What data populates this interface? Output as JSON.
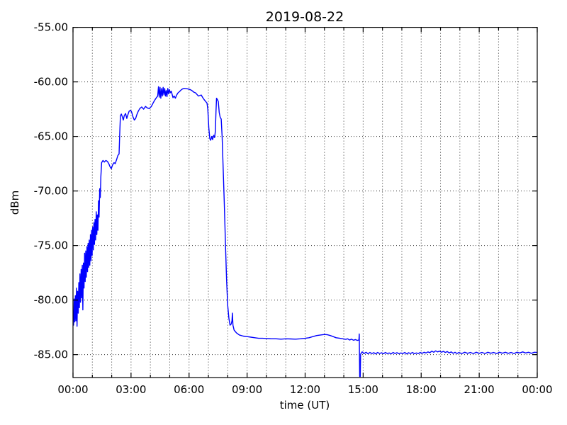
{
  "chart_data": {
    "type": "line",
    "title": "2019-08-22",
    "xlabel": "time (UT)",
    "ylabel": "dBm",
    "xlim": [
      0,
      24
    ],
    "ylim": [
      -87.1,
      -55
    ],
    "grid": true,
    "frame_color": "#000000",
    "grid_color": "#333333",
    "x_axis": {
      "major_ticks": [
        {
          "hour": 0,
          "label": "00:00"
        },
        {
          "hour": 3,
          "label": "03:00"
        },
        {
          "hour": 6,
          "label": "06:00"
        },
        {
          "hour": 9,
          "label": "09:00"
        },
        {
          "hour": 12,
          "label": "12:00"
        },
        {
          "hour": 15,
          "label": "15:00"
        },
        {
          "hour": 18,
          "label": "18:00"
        },
        {
          "hour": 21,
          "label": "21:00"
        },
        {
          "hour": 24,
          "label": "00:00"
        }
      ],
      "minor_tick_hours": [
        1,
        2,
        4,
        5,
        7,
        8,
        10,
        11,
        13,
        14,
        16,
        17,
        19,
        20,
        22,
        23
      ],
      "grid_hours": [
        1,
        2,
        3,
        4,
        5,
        6,
        7,
        8,
        9,
        10,
        11,
        12,
        13,
        14,
        15,
        16,
        17,
        18,
        19,
        20,
        21,
        22,
        23
      ]
    },
    "y_axis": {
      "major_ticks": [
        {
          "value": -55,
          "label": "-55.00"
        },
        {
          "value": -60,
          "label": "-60.00"
        },
        {
          "value": -65,
          "label": "-65.00"
        },
        {
          "value": -70,
          "label": "-70.00"
        },
        {
          "value": -75,
          "label": "-75.00"
        },
        {
          "value": -80,
          "label": "-80.00"
        },
        {
          "value": -85,
          "label": "-85.00"
        }
      ],
      "grid_values": [
        -60,
        -65,
        -70,
        -75,
        -80,
        -85
      ]
    },
    "series": [
      {
        "color": "#0000ff",
        "points": [
          [
            0.0,
            -81.5
          ],
          [
            0.03,
            -82.3
          ],
          [
            0.06,
            -79.9
          ],
          [
            0.09,
            -82.0
          ],
          [
            0.12,
            -79.6
          ],
          [
            0.15,
            -81.9
          ],
          [
            0.18,
            -78.9
          ],
          [
            0.21,
            -82.4
          ],
          [
            0.24,
            -79.2
          ],
          [
            0.27,
            -81.2
          ],
          [
            0.3,
            -78.4
          ],
          [
            0.33,
            -80.7
          ],
          [
            0.36,
            -77.6
          ],
          [
            0.39,
            -80.2
          ],
          [
            0.42,
            -77.2
          ],
          [
            0.45,
            -79.8
          ],
          [
            0.48,
            -76.8
          ],
          [
            0.51,
            -80.9
          ],
          [
            0.54,
            -76.6
          ],
          [
            0.57,
            -78.9
          ],
          [
            0.6,
            -75.7
          ],
          [
            0.63,
            -78.3
          ],
          [
            0.66,
            -75.5
          ],
          [
            0.69,
            -77.9
          ],
          [
            0.72,
            -75.1
          ],
          [
            0.75,
            -77.4
          ],
          [
            0.78,
            -74.8
          ],
          [
            0.81,
            -77.0
          ],
          [
            0.84,
            -74.5
          ],
          [
            0.87,
            -76.8
          ],
          [
            0.9,
            -74.0
          ],
          [
            0.93,
            -76.4
          ],
          [
            0.96,
            -73.6
          ],
          [
            0.99,
            -75.9
          ],
          [
            1.02,
            -73.3
          ],
          [
            1.05,
            -75.4
          ],
          [
            1.08,
            -72.9
          ],
          [
            1.11,
            -74.9
          ],
          [
            1.14,
            -72.6
          ],
          [
            1.17,
            -74.5
          ],
          [
            1.2,
            -71.9
          ],
          [
            1.23,
            -74.0
          ],
          [
            1.26,
            -72.2
          ],
          [
            1.29,
            -73.6
          ],
          [
            1.32,
            -70.9
          ],
          [
            1.35,
            -72.4
          ],
          [
            1.38,
            -69.8
          ],
          [
            1.41,
            -70.6
          ],
          [
            1.44,
            -68.7
          ],
          [
            1.48,
            -67.4
          ],
          [
            1.55,
            -67.2
          ],
          [
            1.62,
            -67.35
          ],
          [
            1.7,
            -67.2
          ],
          [
            1.78,
            -67.3
          ],
          [
            1.85,
            -67.5
          ],
          [
            1.92,
            -67.8
          ],
          [
            1.98,
            -67.95
          ],
          [
            2.05,
            -67.6
          ],
          [
            2.12,
            -67.4
          ],
          [
            2.18,
            -67.5
          ],
          [
            2.25,
            -67.15
          ],
          [
            2.32,
            -66.75
          ],
          [
            2.38,
            -66.6
          ],
          [
            2.42,
            -64.6
          ],
          [
            2.45,
            -63.1
          ],
          [
            2.5,
            -62.95
          ],
          [
            2.55,
            -63.2
          ],
          [
            2.6,
            -63.5
          ],
          [
            2.65,
            -63.1
          ],
          [
            2.72,
            -62.9
          ],
          [
            2.78,
            -63.35
          ],
          [
            2.83,
            -63.05
          ],
          [
            2.9,
            -62.7
          ],
          [
            2.97,
            -62.6
          ],
          [
            3.03,
            -62.75
          ],
          [
            3.1,
            -63.2
          ],
          [
            3.17,
            -63.5
          ],
          [
            3.24,
            -63.35
          ],
          [
            3.3,
            -63.0
          ],
          [
            3.37,
            -62.7
          ],
          [
            3.45,
            -62.45
          ],
          [
            3.55,
            -62.3
          ],
          [
            3.65,
            -62.5
          ],
          [
            3.75,
            -62.25
          ],
          [
            3.85,
            -62.4
          ],
          [
            3.95,
            -62.45
          ],
          [
            4.05,
            -62.25
          ],
          [
            4.15,
            -61.9
          ],
          [
            4.25,
            -61.6
          ],
          [
            4.33,
            -61.4
          ],
          [
            4.38,
            -61.3
          ],
          [
            4.42,
            -60.45
          ],
          [
            4.46,
            -61.4
          ],
          [
            4.5,
            -60.5
          ],
          [
            4.54,
            -61.5
          ],
          [
            4.58,
            -60.6
          ],
          [
            4.62,
            -61.3
          ],
          [
            4.66,
            -60.5
          ],
          [
            4.7,
            -61.2
          ],
          [
            4.74,
            -60.6
          ],
          [
            4.78,
            -61.3
          ],
          [
            4.82,
            -60.8
          ],
          [
            4.86,
            -61.35
          ],
          [
            4.9,
            -60.6
          ],
          [
            4.94,
            -61.1
          ],
          [
            4.98,
            -60.7
          ],
          [
            5.03,
            -61.0
          ],
          [
            5.08,
            -60.85
          ],
          [
            5.12,
            -61.1
          ],
          [
            5.17,
            -61.45
          ],
          [
            5.23,
            -61.3
          ],
          [
            5.29,
            -61.5
          ],
          [
            5.36,
            -61.2
          ],
          [
            5.43,
            -61.0
          ],
          [
            5.5,
            -60.9
          ],
          [
            5.58,
            -60.75
          ],
          [
            5.66,
            -60.65
          ],
          [
            5.75,
            -60.6
          ],
          [
            5.85,
            -60.62
          ],
          [
            5.95,
            -60.65
          ],
          [
            6.05,
            -60.7
          ],
          [
            6.15,
            -60.8
          ],
          [
            6.25,
            -60.95
          ],
          [
            6.33,
            -61.0
          ],
          [
            6.41,
            -61.15
          ],
          [
            6.48,
            -61.3
          ],
          [
            6.55,
            -61.25
          ],
          [
            6.63,
            -61.2
          ],
          [
            6.71,
            -61.45
          ],
          [
            6.79,
            -61.65
          ],
          [
            6.86,
            -61.8
          ],
          [
            6.93,
            -61.95
          ],
          [
            6.97,
            -62.5
          ],
          [
            7.02,
            -64.2
          ],
          [
            7.07,
            -65.2
          ],
          [
            7.12,
            -65.35
          ],
          [
            7.17,
            -65.0
          ],
          [
            7.22,
            -65.3
          ],
          [
            7.27,
            -64.9
          ],
          [
            7.32,
            -65.1
          ],
          [
            7.36,
            -64.5
          ],
          [
            7.39,
            -62.8
          ],
          [
            7.42,
            -61.5
          ],
          [
            7.46,
            -61.6
          ],
          [
            7.51,
            -61.8
          ],
          [
            7.56,
            -62.8
          ],
          [
            7.61,
            -63.25
          ],
          [
            7.66,
            -63.4
          ],
          [
            7.71,
            -65.0
          ],
          [
            7.76,
            -67.8
          ],
          [
            7.82,
            -71.0
          ],
          [
            7.88,
            -74.8
          ],
          [
            7.94,
            -78.2
          ],
          [
            8.0,
            -80.5
          ],
          [
            8.06,
            -81.7
          ],
          [
            8.12,
            -82.3
          ],
          [
            8.18,
            -82.2
          ],
          [
            8.22,
            -81.9
          ],
          [
            8.24,
            -81.2
          ],
          [
            8.27,
            -82.3
          ],
          [
            8.33,
            -82.75
          ],
          [
            8.45,
            -83.0
          ],
          [
            8.6,
            -83.2
          ],
          [
            8.8,
            -83.3
          ],
          [
            9.0,
            -83.35
          ],
          [
            9.2,
            -83.4
          ],
          [
            9.4,
            -83.45
          ],
          [
            9.6,
            -83.5
          ],
          [
            9.8,
            -83.5
          ],
          [
            10.0,
            -83.52
          ],
          [
            10.25,
            -83.55
          ],
          [
            10.5,
            -83.55
          ],
          [
            10.75,
            -83.58
          ],
          [
            11.0,
            -83.55
          ],
          [
            11.25,
            -83.56
          ],
          [
            11.5,
            -83.58
          ],
          [
            11.75,
            -83.55
          ],
          [
            12.0,
            -83.5
          ],
          [
            12.2,
            -83.45
          ],
          [
            12.4,
            -83.35
          ],
          [
            12.6,
            -83.25
          ],
          [
            12.8,
            -83.2
          ],
          [
            13.0,
            -83.15
          ],
          [
            13.15,
            -83.18
          ],
          [
            13.3,
            -83.25
          ],
          [
            13.45,
            -83.35
          ],
          [
            13.6,
            -83.45
          ],
          [
            13.8,
            -83.5
          ],
          [
            13.95,
            -83.55
          ],
          [
            14.1,
            -83.6
          ],
          [
            14.2,
            -83.55
          ],
          [
            14.3,
            -83.66
          ],
          [
            14.4,
            -83.58
          ],
          [
            14.5,
            -83.68
          ],
          [
            14.6,
            -83.62
          ],
          [
            14.7,
            -83.7
          ],
          [
            14.78,
            -83.66
          ],
          [
            14.8,
            -83.1
          ],
          [
            14.82,
            -87.0
          ],
          [
            14.85,
            -87.0
          ],
          [
            14.87,
            -84.95
          ],
          [
            14.95,
            -84.75
          ],
          [
            15.05,
            -84.9
          ],
          [
            15.15,
            -84.78
          ],
          [
            15.25,
            -84.92
          ],
          [
            15.35,
            -84.8
          ],
          [
            15.45,
            -84.9
          ],
          [
            15.55,
            -84.82
          ],
          [
            15.65,
            -84.93
          ],
          [
            15.75,
            -84.8
          ],
          [
            15.85,
            -84.9
          ],
          [
            15.95,
            -84.83
          ],
          [
            16.05,
            -84.92
          ],
          [
            16.15,
            -84.8
          ],
          [
            16.25,
            -84.9
          ],
          [
            16.35,
            -84.85
          ],
          [
            16.45,
            -84.93
          ],
          [
            16.55,
            -84.8
          ],
          [
            16.65,
            -84.9
          ],
          [
            16.75,
            -84.82
          ],
          [
            16.85,
            -84.92
          ],
          [
            16.95,
            -84.85
          ],
          [
            17.05,
            -84.9
          ],
          [
            17.15,
            -84.8
          ],
          [
            17.25,
            -84.93
          ],
          [
            17.35,
            -84.83
          ],
          [
            17.45,
            -84.9
          ],
          [
            17.55,
            -84.8
          ],
          [
            17.65,
            -84.92
          ],
          [
            17.75,
            -84.85
          ],
          [
            17.85,
            -84.9
          ],
          [
            17.95,
            -84.8
          ],
          [
            18.05,
            -84.88
          ],
          [
            18.15,
            -84.78
          ],
          [
            18.25,
            -84.85
          ],
          [
            18.35,
            -84.75
          ],
          [
            18.45,
            -84.82
          ],
          [
            18.55,
            -84.68
          ],
          [
            18.65,
            -84.78
          ],
          [
            18.75,
            -84.65
          ],
          [
            18.85,
            -84.75
          ],
          [
            18.95,
            -84.68
          ],
          [
            19.05,
            -84.78
          ],
          [
            19.15,
            -84.7
          ],
          [
            19.25,
            -84.8
          ],
          [
            19.35,
            -84.72
          ],
          [
            19.45,
            -84.85
          ],
          [
            19.55,
            -84.75
          ],
          [
            19.65,
            -84.88
          ],
          [
            19.75,
            -84.78
          ],
          [
            19.85,
            -84.9
          ],
          [
            19.95,
            -84.8
          ],
          [
            20.1,
            -84.9
          ],
          [
            20.25,
            -84.78
          ],
          [
            20.4,
            -84.88
          ],
          [
            20.55,
            -84.8
          ],
          [
            20.7,
            -84.9
          ],
          [
            20.85,
            -84.78
          ],
          [
            21.0,
            -84.88
          ],
          [
            21.15,
            -84.8
          ],
          [
            21.3,
            -84.9
          ],
          [
            21.45,
            -84.78
          ],
          [
            21.6,
            -84.87
          ],
          [
            21.75,
            -84.8
          ],
          [
            21.9,
            -84.9
          ],
          [
            22.05,
            -84.78
          ],
          [
            22.2,
            -84.87
          ],
          [
            22.35,
            -84.78
          ],
          [
            22.5,
            -84.88
          ],
          [
            22.65,
            -84.8
          ],
          [
            22.8,
            -84.9
          ],
          [
            22.95,
            -84.78
          ],
          [
            23.1,
            -84.85
          ],
          [
            23.25,
            -84.75
          ],
          [
            23.4,
            -84.85
          ],
          [
            23.55,
            -84.78
          ],
          [
            23.7,
            -84.88
          ],
          [
            23.85,
            -84.78
          ],
          [
            24.0,
            -84.8
          ]
        ]
      }
    ]
  }
}
